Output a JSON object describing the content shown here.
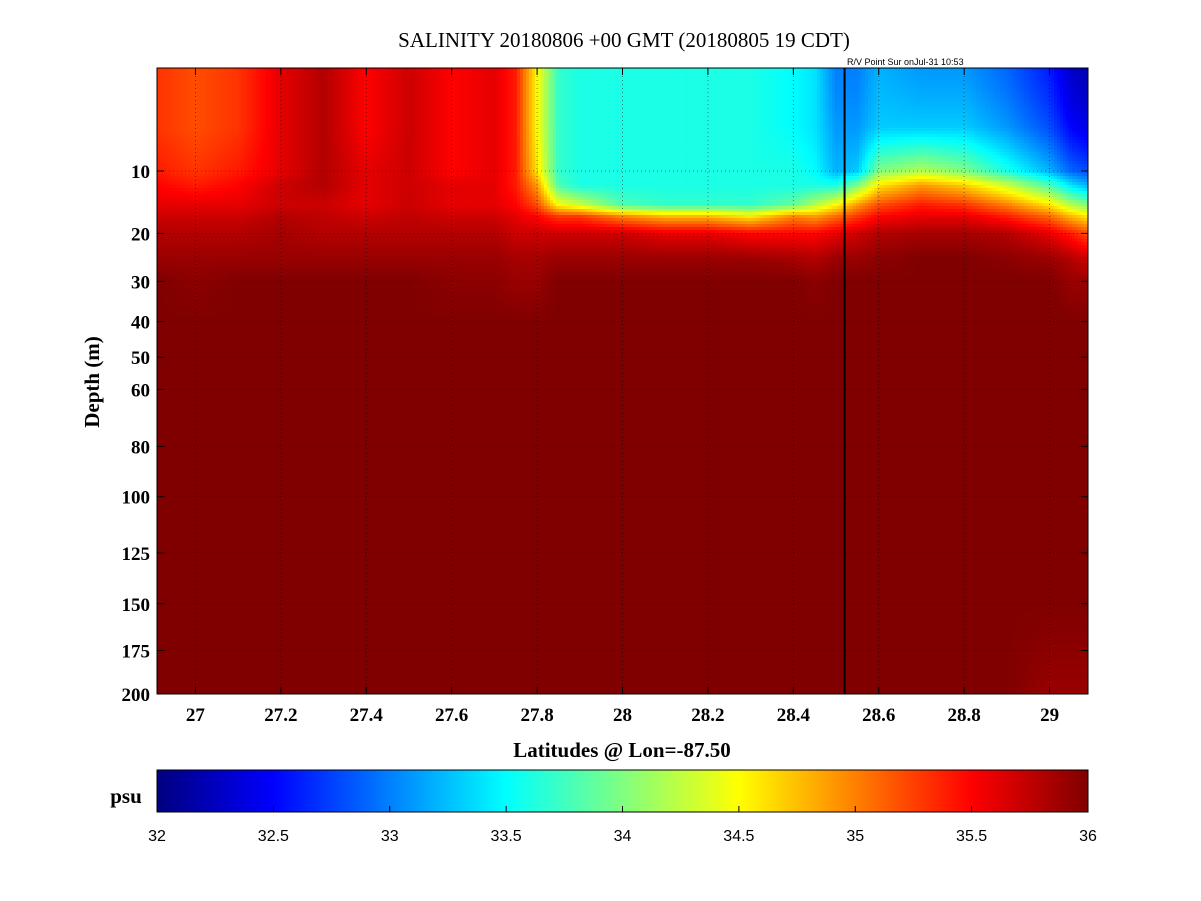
{
  "chart_data": {
    "type": "heatmap",
    "title": "SALINITY 20180806 +00 GMT (20180805 19 CDT)",
    "annotation": "R/V Point Sur onJul-31 10:53",
    "xlabel": "Latitudes @ Lon=-87.50",
    "ylabel": "Depth (m)",
    "xlim": [
      26.91,
      29.09
    ],
    "ylim": [
      200,
      1
    ],
    "y_scale": "sqrt",
    "grid": true,
    "x_ticks": [
      27,
      27.2,
      27.4,
      27.6,
      27.8,
      28,
      28.2,
      28.4,
      28.6,
      28.8,
      29
    ],
    "x_tick_labels": [
      "27",
      "27.2",
      "27.4",
      "27.6",
      "27.8",
      "28",
      "28.2",
      "28.4",
      "28.6",
      "28.8",
      "29"
    ],
    "y_ticks": [
      10,
      20,
      30,
      40,
      50,
      60,
      80,
      100,
      125,
      150,
      175,
      200
    ],
    "y_tick_labels": [
      "10",
      "20",
      "30",
      "40",
      "50",
      "60",
      "80",
      "100",
      "125",
      "150",
      "175",
      "200"
    ],
    "vertical_marker_lat": 28.52,
    "colorbar": {
      "label": "psu",
      "min": 32,
      "max": 36,
      "ticks": [
        32,
        32.5,
        33,
        33.5,
        34,
        34.5,
        35,
        35.5,
        36
      ],
      "tick_labels": [
        "32",
        "32.5",
        "33",
        "33.5",
        "34",
        "34.5",
        "35",
        "35.5",
        "36"
      ],
      "colormap": "jet"
    },
    "latitudes": [
      26.91,
      27.0,
      27.1,
      27.2,
      27.3,
      27.4,
      27.5,
      27.6,
      27.7,
      27.75,
      27.8,
      27.85,
      27.9,
      28.0,
      28.1,
      28.2,
      28.3,
      28.4,
      28.45,
      28.5,
      28.55,
      28.6,
      28.7,
      28.8,
      28.9,
      29.0,
      29.05,
      29.09
    ],
    "depths": [
      1,
      5,
      10,
      12,
      15,
      17,
      20,
      25,
      30,
      40,
      60,
      100,
      150,
      200
    ],
    "salinity": [
      [
        35.3,
        35.3,
        35.4,
        35.5,
        35.6,
        35.7,
        35.8,
        35.9,
        36.0,
        36.0,
        36.0,
        36.0,
        36.0,
        36.0
      ],
      [
        35.2,
        35.2,
        35.3,
        35.4,
        35.6,
        35.7,
        35.8,
        35.9,
        35.95,
        36.0,
        36.0,
        36.0,
        36.0,
        36.0
      ],
      [
        35.3,
        35.3,
        35.4,
        35.5,
        35.6,
        35.7,
        35.8,
        35.9,
        36.0,
        36.0,
        36.0,
        36.0,
        36.0,
        36.0
      ],
      [
        35.6,
        35.6,
        35.6,
        35.7,
        35.7,
        35.8,
        35.85,
        35.9,
        36.0,
        36.0,
        36.0,
        36.0,
        36.0,
        36.0
      ],
      [
        35.8,
        35.8,
        35.8,
        35.8,
        35.7,
        35.75,
        35.8,
        35.9,
        36.0,
        36.0,
        36.0,
        36.0,
        36.0,
        36.0
      ],
      [
        35.5,
        35.5,
        35.6,
        35.6,
        35.6,
        35.7,
        35.8,
        35.9,
        36.0,
        36.0,
        36.0,
        36.0,
        36.0,
        36.0
      ],
      [
        35.7,
        35.7,
        35.7,
        35.7,
        35.7,
        35.75,
        35.8,
        35.9,
        36.0,
        36.0,
        36.0,
        36.0,
        36.0,
        36.0
      ],
      [
        35.5,
        35.5,
        35.5,
        35.6,
        35.6,
        35.7,
        35.8,
        35.9,
        35.95,
        36.0,
        36.0,
        36.0,
        36.0,
        36.0
      ],
      [
        35.6,
        35.6,
        35.6,
        35.6,
        35.6,
        35.7,
        35.8,
        35.9,
        35.95,
        36.0,
        36.0,
        36.0,
        36.0,
        36.0
      ],
      [
        35.4,
        35.4,
        35.4,
        35.4,
        35.5,
        35.6,
        35.7,
        35.85,
        35.9,
        36.0,
        36.0,
        36.0,
        36.0,
        36.0
      ],
      [
        34.5,
        34.5,
        34.6,
        34.9,
        35.2,
        35.5,
        35.7,
        35.85,
        35.9,
        36.0,
        36.0,
        36.0,
        36.0,
        36.0
      ],
      [
        33.7,
        33.7,
        33.7,
        33.8,
        34.5,
        35.3,
        35.7,
        35.9,
        36.0,
        36.0,
        36.0,
        36.0,
        36.0,
        36.0
      ],
      [
        33.6,
        33.6,
        33.6,
        33.6,
        34.3,
        35.3,
        35.7,
        35.9,
        36.0,
        36.0,
        36.0,
        36.0,
        36.0,
        36.0
      ],
      [
        33.6,
        33.6,
        33.6,
        33.6,
        33.8,
        35.0,
        35.7,
        35.9,
        36.0,
        36.0,
        36.0,
        36.0,
        36.0,
        36.0
      ],
      [
        33.6,
        33.6,
        33.6,
        33.6,
        33.7,
        34.8,
        35.6,
        35.9,
        36.0,
        36.0,
        36.0,
        36.0,
        36.0,
        36.0
      ],
      [
        33.6,
        33.6,
        33.6,
        33.6,
        33.7,
        34.8,
        35.6,
        35.9,
        36.0,
        36.0,
        36.0,
        36.0,
        36.0,
        36.0
      ],
      [
        33.6,
        33.6,
        33.6,
        33.6,
        33.7,
        34.6,
        35.5,
        35.9,
        36.0,
        36.0,
        36.0,
        36.0,
        36.0,
        36.0
      ],
      [
        33.5,
        33.5,
        33.6,
        33.6,
        33.9,
        35.0,
        35.5,
        35.85,
        36.0,
        36.0,
        36.0,
        36.0,
        36.0,
        36.0
      ],
      [
        33.4,
        33.4,
        33.5,
        33.6,
        34.2,
        34.9,
        35.5,
        35.8,
        35.95,
        36.0,
        36.0,
        36.0,
        36.0,
        36.0
      ],
      [
        33.0,
        33.1,
        33.2,
        33.6,
        34.5,
        35.1,
        35.6,
        35.9,
        36.0,
        36.0,
        36.0,
        36.0,
        36.0,
        36.0
      ],
      [
        33.0,
        33.1,
        33.3,
        34.0,
        34.9,
        35.3,
        35.7,
        35.9,
        36.0,
        36.0,
        36.0,
        36.0,
        36.0,
        36.0
      ],
      [
        33.2,
        33.3,
        34.0,
        34.6,
        35.2,
        35.5,
        35.8,
        35.95,
        36.0,
        36.0,
        36.0,
        36.0,
        36.0,
        36.0
      ],
      [
        33.1,
        33.3,
        34.2,
        34.9,
        35.4,
        35.6,
        35.85,
        36.0,
        36.0,
        36.0,
        36.0,
        36.0,
        36.0,
        36.0
      ],
      [
        33.1,
        33.3,
        34.0,
        34.7,
        35.3,
        35.6,
        35.85,
        36.0,
        36.0,
        36.0,
        36.0,
        36.0,
        36.0,
        36.0
      ],
      [
        32.9,
        33.1,
        33.6,
        34.3,
        35.0,
        35.4,
        35.8,
        35.95,
        36.0,
        36.0,
        36.0,
        36.0,
        36.0,
        36.0
      ],
      [
        32.6,
        32.8,
        33.2,
        33.8,
        34.6,
        35.1,
        35.6,
        35.9,
        36.0,
        36.0,
        36.0,
        36.0,
        36.0,
        35.9
      ],
      [
        32.3,
        32.5,
        32.9,
        33.4,
        34.2,
        34.8,
        35.4,
        35.8,
        35.9,
        36.0,
        36.0,
        36.0,
        36.0,
        35.9
      ],
      [
        32.2,
        32.4,
        32.8,
        33.2,
        34.0,
        34.6,
        35.2,
        35.7,
        35.9,
        36.0,
        36.0,
        36.0,
        36.0,
        35.9
      ]
    ]
  }
}
